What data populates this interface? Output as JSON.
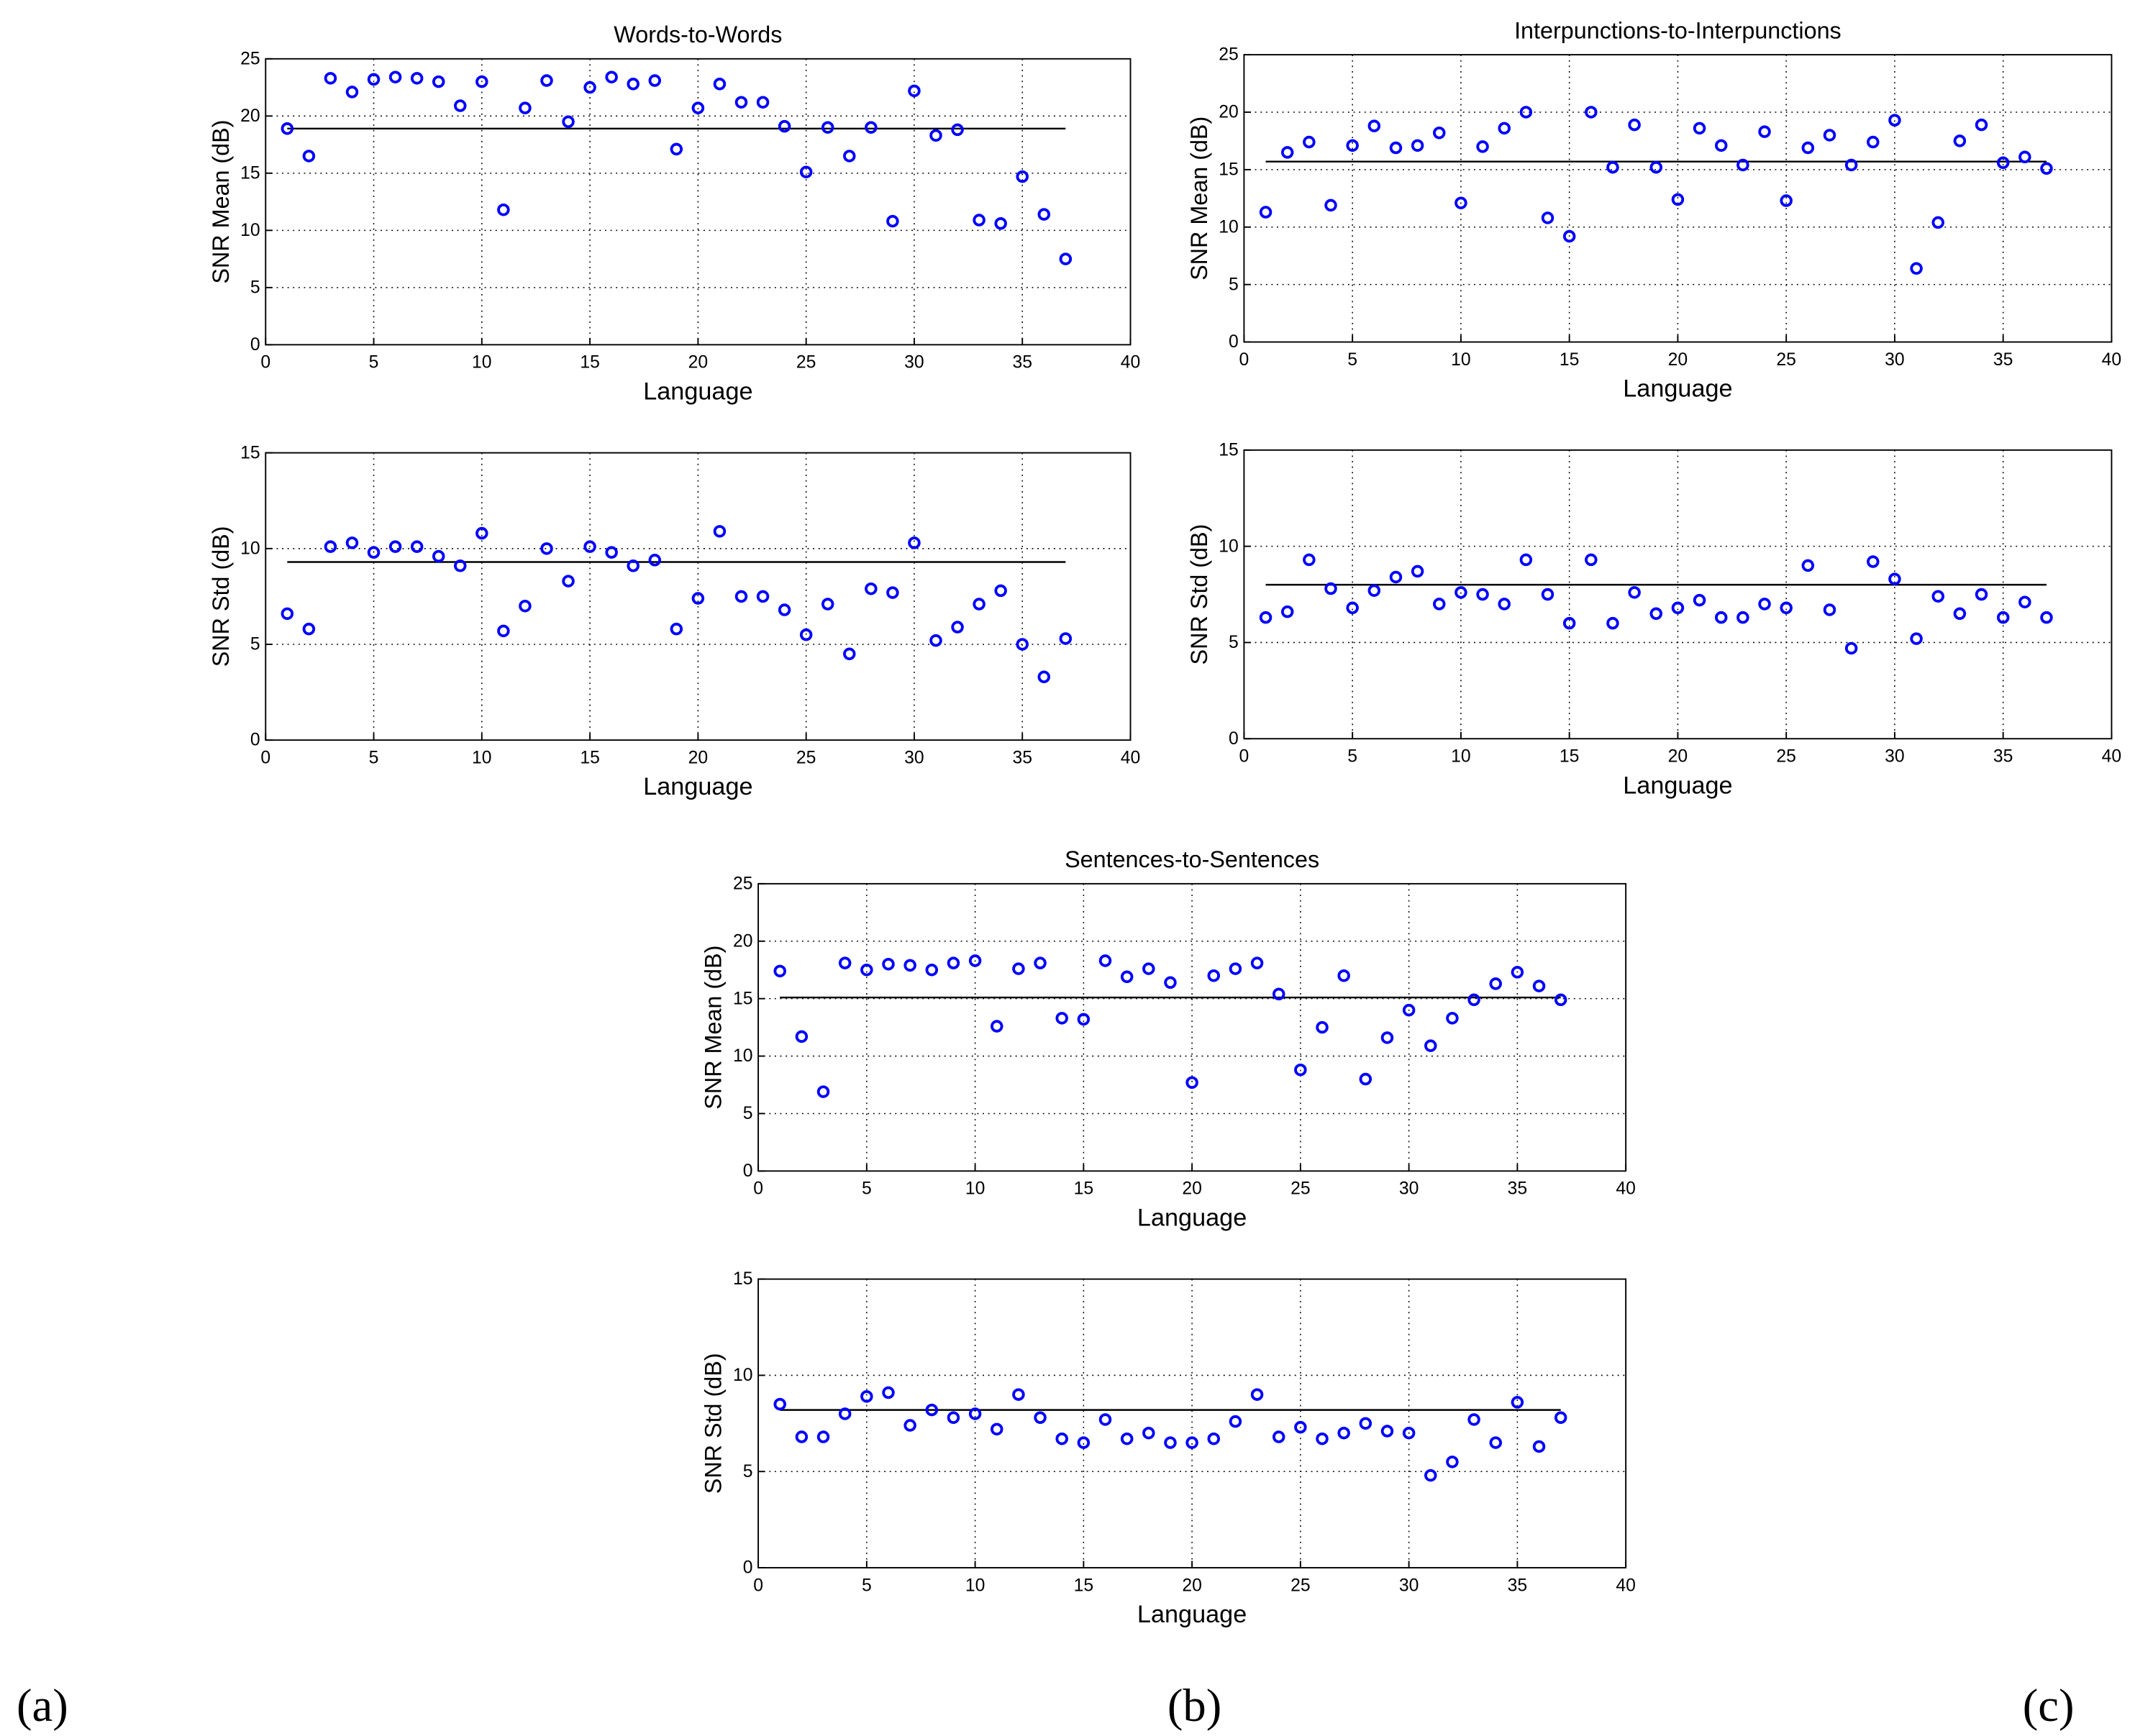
{
  "figure": {
    "panel_labels": [
      "(a)",
      "(b)",
      "(c)"
    ]
  },
  "chart_data": [
    {
      "type": "scatter",
      "title": "Words-to-Words",
      "xlabel": "Language",
      "ylabel": "SNR Mean (dB)",
      "xlim": [
        0,
        40
      ],
      "ylim": [
        0,
        25
      ],
      "xticks": [
        0,
        5,
        10,
        15,
        20,
        25,
        30,
        35,
        40
      ],
      "yticks": [
        0,
        5,
        10,
        15,
        20,
        25
      ],
      "grid": true,
      "marker_color": "#0000ff",
      "x": [
        1,
        2,
        3,
        4,
        5,
        6,
        7,
        8,
        9,
        10,
        11,
        12,
        13,
        14,
        15,
        16,
        17,
        18,
        19,
        20,
        21,
        22,
        23,
        24,
        25,
        26,
        27,
        28,
        29,
        30,
        31,
        32,
        33,
        34,
        35,
        36,
        37
      ],
      "y": [
        18.9,
        16.5,
        23.3,
        22.1,
        23.2,
        23.4,
        23.3,
        23.0,
        20.9,
        23.0,
        11.8,
        20.7,
        23.1,
        19.5,
        22.5,
        23.4,
        22.8,
        23.1,
        17.1,
        20.7,
        22.8,
        21.2,
        21.2,
        19.1,
        15.1,
        19.0,
        16.5,
        19.0,
        10.8,
        22.2,
        18.3,
        18.8,
        10.9,
        10.6,
        14.7,
        11.4,
        7.5
      ],
      "mean_line": 18.9
    },
    {
      "type": "scatter",
      "title": "",
      "xlabel": "Language",
      "ylabel": "SNR Std (dB)",
      "xlim": [
        0,
        40
      ],
      "ylim": [
        0,
        15
      ],
      "xticks": [
        0,
        5,
        10,
        15,
        20,
        25,
        30,
        35,
        40
      ],
      "yticks": [
        0,
        5,
        10,
        15
      ],
      "grid": true,
      "marker_color": "#0000ff",
      "x": [
        1,
        2,
        3,
        4,
        5,
        6,
        7,
        8,
        9,
        10,
        11,
        12,
        13,
        14,
        15,
        16,
        17,
        18,
        19,
        20,
        21,
        22,
        23,
        24,
        25,
        26,
        27,
        28,
        29,
        30,
        31,
        32,
        33,
        34,
        35,
        36,
        37
      ],
      "y": [
        6.6,
        5.8,
        10.1,
        10.3,
        9.8,
        10.1,
        10.1,
        9.6,
        9.1,
        10.8,
        5.7,
        7.0,
        10.0,
        8.3,
        10.1,
        9.8,
        9.1,
        9.4,
        5.8,
        7.4,
        10.9,
        7.5,
        7.5,
        6.8,
        5.5,
        7.1,
        4.5,
        7.9,
        7.7,
        10.3,
        5.2,
        5.9,
        7.1,
        7.8,
        5.0,
        3.3,
        5.3
      ],
      "mean_line": 9.3
    },
    {
      "type": "scatter",
      "title": "Interpunctions-to-Interpunctions",
      "xlabel": "Language",
      "ylabel": "SNR Mean (dB)",
      "xlim": [
        0,
        40
      ],
      "ylim": [
        0,
        25
      ],
      "xticks": [
        0,
        5,
        10,
        15,
        20,
        25,
        30,
        35,
        40
      ],
      "yticks": [
        0,
        5,
        10,
        15,
        20,
        25
      ],
      "grid": true,
      "marker_color": "#0000ff",
      "x": [
        1,
        2,
        3,
        4,
        5,
        6,
        7,
        8,
        9,
        10,
        11,
        12,
        13,
        14,
        15,
        16,
        17,
        18,
        19,
        20,
        21,
        22,
        23,
        24,
        25,
        26,
        27,
        28,
        29,
        30,
        31,
        32,
        33,
        34,
        35,
        36,
        37
      ],
      "y": [
        11.3,
        16.5,
        17.4,
        11.9,
        17.1,
        18.8,
        16.9,
        17.1,
        18.2,
        12.1,
        17.0,
        18.6,
        20.0,
        10.8,
        9.2,
        20.0,
        15.2,
        18.9,
        15.2,
        12.4,
        18.6,
        17.1,
        15.4,
        18.3,
        12.3,
        16.9,
        18.0,
        15.4,
        17.4,
        19.3,
        6.4,
        10.4,
        17.5,
        18.9,
        15.6,
        16.1,
        15.1
      ],
      "mean_line": 15.7
    },
    {
      "type": "scatter",
      "title": "",
      "xlabel": "Language",
      "ylabel": "SNR Std (dB)",
      "xlim": [
        0,
        40
      ],
      "ylim": [
        0,
        15
      ],
      "xticks": [
        0,
        5,
        10,
        15,
        20,
        25,
        30,
        35,
        40
      ],
      "yticks": [
        0,
        5,
        10,
        15
      ],
      "grid": true,
      "marker_color": "#0000ff",
      "x": [
        1,
        2,
        3,
        4,
        5,
        6,
        7,
        8,
        9,
        10,
        11,
        12,
        13,
        14,
        15,
        16,
        17,
        18,
        19,
        20,
        21,
        22,
        23,
        24,
        25,
        26,
        27,
        28,
        29,
        30,
        31,
        32,
        33,
        34,
        35,
        36,
        37
      ],
      "y": [
        6.3,
        6.6,
        9.3,
        7.8,
        6.8,
        7.7,
        8.4,
        8.7,
        7.0,
        7.6,
        7.5,
        7.0,
        9.3,
        7.5,
        6.0,
        9.3,
        6.0,
        7.6,
        6.5,
        6.8,
        7.2,
        6.3,
        6.3,
        7.0,
        6.8,
        9.0,
        6.7,
        4.7,
        9.2,
        8.3,
        5.2,
        7.4,
        6.5,
        7.5,
        6.3,
        7.1,
        6.3
      ],
      "mean_line": 8.0
    },
    {
      "type": "scatter",
      "title": "Sentences-to-Sentences",
      "xlabel": "Language",
      "ylabel": "SNR Mean (dB)",
      "xlim": [
        0,
        40
      ],
      "ylim": [
        0,
        25
      ],
      "xticks": [
        0,
        5,
        10,
        15,
        20,
        25,
        30,
        35,
        40
      ],
      "yticks": [
        0,
        5,
        10,
        15,
        20,
        25
      ],
      "grid": true,
      "marker_color": "#0000ff",
      "x": [
        1,
        2,
        3,
        4,
        5,
        6,
        7,
        8,
        9,
        10,
        11,
        12,
        13,
        14,
        15,
        16,
        17,
        18,
        19,
        20,
        21,
        22,
        23,
        24,
        25,
        26,
        27,
        28,
        29,
        30,
        31,
        32,
        33,
        34,
        35,
        36,
        37
      ],
      "y": [
        17.4,
        11.7,
        6.9,
        18.1,
        17.5,
        18.0,
        17.9,
        17.5,
        18.1,
        18.3,
        12.6,
        17.6,
        18.1,
        13.3,
        13.2,
        18.3,
        16.9,
        17.6,
        16.4,
        7.7,
        17.0,
        17.6,
        18.1,
        15.4,
        8.8,
        12.5,
        17.0,
        8.0,
        11.6,
        14.0,
        10.9,
        13.3,
        14.9,
        16.3,
        17.3,
        16.1,
        14.9
      ],
      "mean_line": 15.1
    },
    {
      "type": "scatter",
      "title": "",
      "xlabel": "Language",
      "ylabel": "SNR Std (dB)",
      "xlim": [
        0,
        40
      ],
      "ylim": [
        0,
        15
      ],
      "xticks": [
        0,
        5,
        10,
        15,
        20,
        25,
        30,
        35,
        40
      ],
      "yticks": [
        0,
        5,
        10,
        15
      ],
      "grid": true,
      "marker_color": "#0000ff",
      "x": [
        1,
        2,
        3,
        4,
        5,
        6,
        7,
        8,
        9,
        10,
        11,
        12,
        13,
        14,
        15,
        16,
        17,
        18,
        19,
        20,
        21,
        22,
        23,
        24,
        25,
        26,
        27,
        28,
        29,
        30,
        31,
        32,
        33,
        34,
        35,
        36,
        37
      ],
      "y": [
        8.5,
        6.8,
        6.8,
        8.0,
        8.9,
        9.1,
        7.4,
        8.2,
        7.8,
        8.0,
        7.2,
        9.0,
        7.8,
        6.7,
        6.5,
        7.7,
        6.7,
        7.0,
        6.5,
        6.5,
        6.7,
        7.6,
        9.0,
        6.8,
        7.3,
        6.7,
        7.0,
        7.5,
        7.1,
        7.0,
        4.8,
        5.5,
        7.7,
        6.5,
        8.6,
        6.3,
        7.8
      ],
      "mean_line": 8.2
    }
  ]
}
